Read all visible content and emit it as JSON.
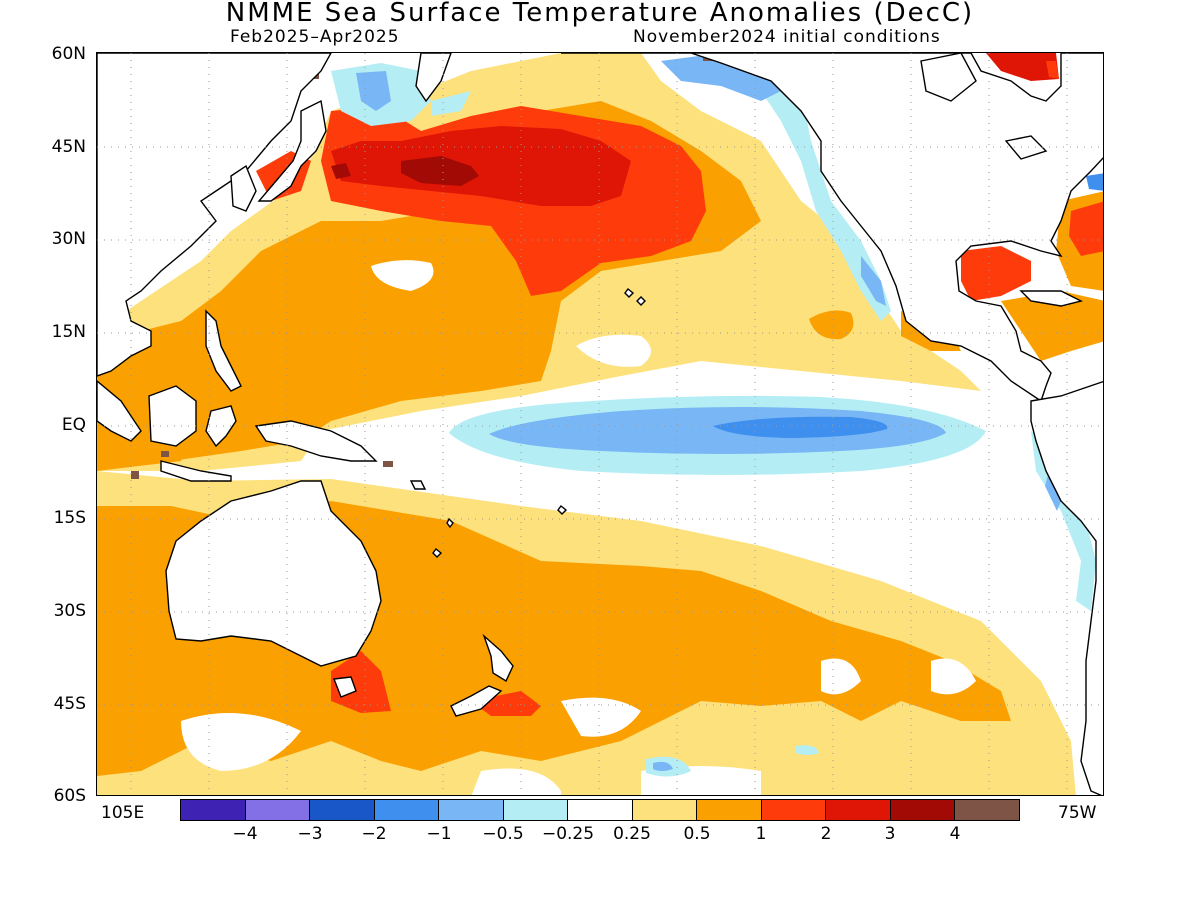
{
  "header": {
    "title": "NMME Sea Surface Temperature Anomalies (DecC)",
    "period": "Feb2025–Apr2025",
    "init": "November2024 initial conditions"
  },
  "axes": {
    "lat_labels": [
      "60N",
      "45N",
      "30N",
      "15N",
      "EQ",
      "15S",
      "30S",
      "45S",
      "60S"
    ],
    "lon_west": "105E",
    "lon_east": "75W"
  },
  "legend": {
    "colors": [
      "#3d22b4",
      "#8470e6",
      "#1957c9",
      "#3f8fef",
      "#78b6f5",
      "#b4eef4",
      "#ffffff",
      "#fde17c",
      "#fba001",
      "#fe3c0b",
      "#df1506",
      "#a10a05",
      "#7e5446"
    ],
    "ticks": [
      "−4",
      "−3",
      "−2",
      "−1",
      "−0.5",
      "−0.25",
      "0.25",
      "0.5",
      "1",
      "2",
      "3",
      "4"
    ]
  }
}
